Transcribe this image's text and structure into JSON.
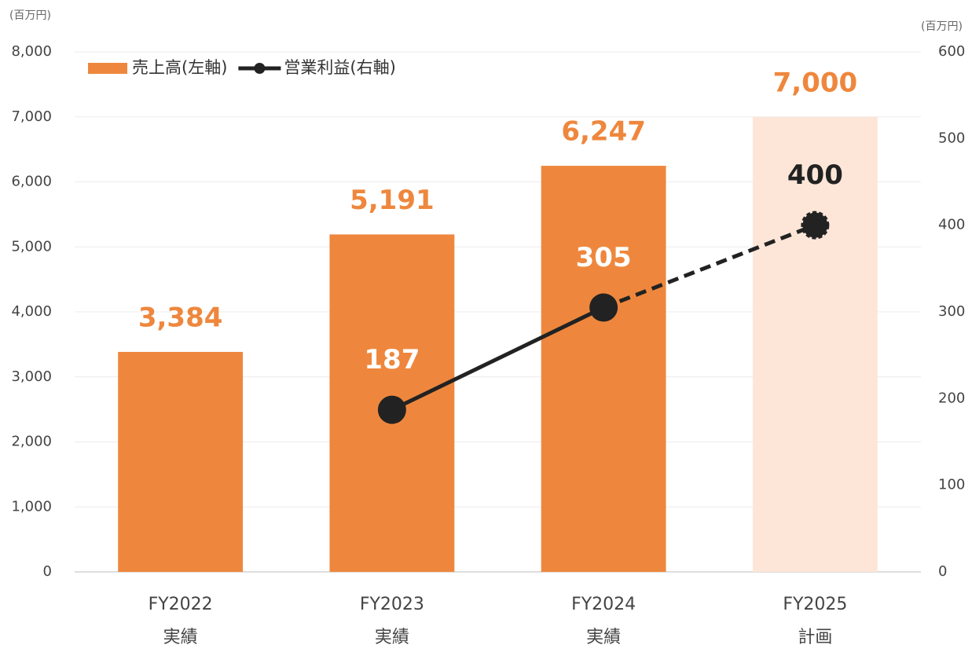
{
  "chart_data": {
    "type": "bar_line",
    "y_unit": "(百万円)",
    "y2_unit": "(百万円)",
    "categories": [
      "FY2022",
      "FY2023",
      "FY2024",
      "FY2025"
    ],
    "category_notes": [
      "実績",
      "実績",
      "実績",
      "計画"
    ],
    "ylim": [
      0,
      8000
    ],
    "yticks": [
      0,
      {
        "value": 1000,
        "label": "1,000"
      },
      {
        "value": 2000,
        "label": "2,000"
      },
      {
        "value": 3000,
        "label": "3,000"
      },
      {
        "value": 4000,
        "label": "4,000"
      },
      {
        "value": 5000,
        "label": "5,000"
      },
      {
        "value": 6000,
        "label": "6,000"
      },
      {
        "value": 7000,
        "label": "7,000"
      },
      {
        "value": 8000,
        "label": "8,000"
      }
    ],
    "y2lim": [
      0,
      600
    ],
    "y2ticks": [
      0,
      100,
      200,
      300,
      400,
      500,
      600
    ],
    "grid": true,
    "legend": "top-left",
    "series": [
      {
        "name": "売上高(左軸)",
        "type": "bar",
        "color": "#ee873d",
        "colors": [
          "#ee873d",
          "#ee873d",
          "#ee873d",
          "#fde6d8"
        ],
        "values": [
          3384,
          5191,
          6247,
          7000
        ],
        "value_labels": [
          "3,384",
          "5,191",
          "6,247",
          "7,000"
        ],
        "label_color": "#ee873d"
      },
      {
        "name": "営業利益(右軸)",
        "type": "line",
        "axis": "y2",
        "color": "#222222",
        "values": [
          null,
          187,
          305,
          400
        ],
        "dashed": [
          false,
          false,
          false,
          true
        ],
        "label_colors": [
          null,
          "#ffffff",
          "#ffffff",
          "#222222"
        ]
      }
    ]
  }
}
